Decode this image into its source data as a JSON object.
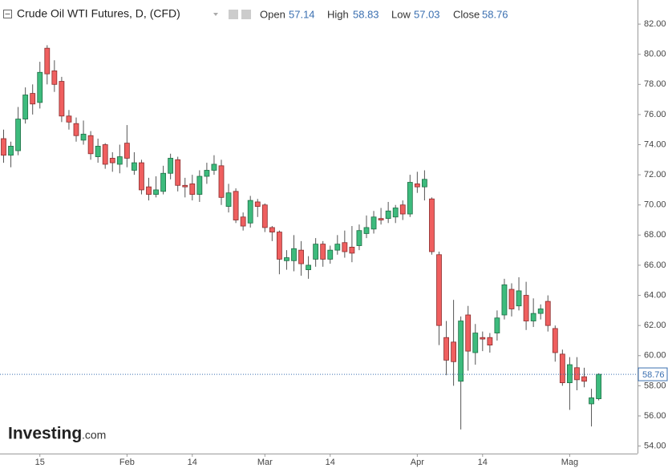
{
  "chart_data": {
    "type": "candlestick",
    "title": "Crude Oil WTI Futures, D, (CFD)",
    "ohlc_labels": [
      "Open",
      "High",
      "Low",
      "Close"
    ],
    "watermark": [
      "Investing",
      ".com"
    ],
    "categories": [
      null,
      null,
      null,
      null,
      null,
      "15",
      null,
      null,
      null,
      null,
      null,
      null,
      null,
      null,
      null,
      null,
      null,
      "Feb",
      null,
      null,
      null,
      null,
      null,
      null,
      null,
      null,
      "14",
      null,
      null,
      null,
      null,
      null,
      null,
      null,
      null,
      null,
      "Mar",
      null,
      null,
      null,
      null,
      null,
      null,
      null,
      null,
      "14",
      null,
      null,
      null,
      null,
      null,
      null,
      null,
      null,
      null,
      null,
      null,
      "Apr",
      null,
      null,
      null,
      null,
      null,
      null,
      null,
      null,
      "14",
      null,
      null,
      null,
      null,
      null,
      null,
      null,
      null,
      null,
      null,
      null,
      "Mag",
      null,
      null,
      null,
      null
    ],
    "open": [
      74.4,
      73.3,
      73.6,
      75.7,
      77.4,
      76.8,
      80.4,
      78.9,
      78.2,
      75.9,
      75.4,
      74.3,
      74.6,
      73.2,
      74.0,
      73.1,
      72.7,
      74.1,
      72.3,
      72.8,
      71.2,
      70.7,
      70.9,
      72.1,
      73.0,
      71.3,
      71.4,
      70.7,
      71.9,
      72.3,
      72.6,
      69.9,
      70.9,
      69.2,
      68.8,
      70.2,
      70.0,
      68.5,
      68.2,
      66.3,
      66.3,
      67.0,
      65.7,
      66.4,
      67.4,
      66.4,
      67.0,
      67.5,
      67.2,
      67.3,
      68.1,
      68.4,
      69.1,
      69.1,
      69.2,
      70.0,
      69.4,
      71.4,
      71.2,
      70.4,
      66.7,
      61.2,
      60.9,
      58.3,
      62.7,
      60.2,
      61.2,
      61.2,
      61.5,
      62.7,
      64.4,
      63.3,
      64.0,
      62.3,
      62.8,
      63.6,
      61.8,
      60.1,
      58.2,
      59.2,
      58.6,
      56.8,
      57.14
    ],
    "high": [
      75.0,
      74.2,
      76.5,
      77.8,
      78.0,
      79.5,
      80.6,
      79.6,
      78.5,
      76.3,
      75.8,
      75.6,
      74.9,
      74.4,
      74.1,
      73.5,
      74.0,
      75.3,
      73.5,
      73.0,
      71.8,
      71.9,
      72.6,
      73.4,
      73.2,
      71.8,
      72.0,
      72.3,
      72.8,
      73.3,
      73.0,
      71.4,
      71.1,
      69.5,
      70.6,
      70.4,
      70.1,
      68.6,
      68.3,
      67.0,
      68.0,
      67.6,
      66.6,
      67.8,
      67.6,
      67.3,
      68.0,
      68.3,
      68.6,
      68.7,
      69.3,
      69.6,
      69.8,
      70.2,
      70.0,
      70.3,
      72.0,
      72.2,
      72.3,
      70.5,
      66.9,
      62.3,
      63.7,
      62.6,
      63.3,
      62.1,
      61.6,
      61.5,
      63.0,
      65.1,
      64.8,
      65.2,
      64.9,
      63.8,
      63.4,
      64.0,
      62.0,
      60.4,
      59.9,
      59.9,
      59.2,
      57.8,
      58.83
    ],
    "low": [
      72.8,
      72.5,
      73.3,
      75.4,
      76.0,
      76.4,
      78.0,
      77.5,
      75.5,
      75.0,
      74.2,
      74.0,
      73.0,
      72.8,
      72.4,
      72.2,
      72.1,
      72.5,
      72.0,
      70.7,
      70.3,
      70.5,
      70.7,
      71.7,
      70.9,
      70.5,
      70.3,
      70.2,
      71.4,
      72.0,
      70.0,
      69.5,
      68.8,
      68.3,
      68.5,
      69.2,
      68.2,
      67.6,
      65.4,
      65.7,
      65.6,
      65.3,
      65.1,
      65.9,
      65.9,
      66.1,
      66.7,
      66.5,
      66.2,
      67.0,
      67.8,
      68.1,
      68.7,
      68.8,
      68.8,
      69.0,
      69.2,
      70.8,
      70.3,
      66.7,
      60.7,
      58.7,
      58.0,
      55.1,
      59.0,
      59.4,
      60.3,
      60.2,
      61.0,
      62.4,
      62.6,
      63.0,
      61.7,
      61.9,
      62.4,
      61.6,
      59.6,
      58.0,
      56.4,
      57.7,
      57.9,
      55.3,
      57.03
    ],
    "close": [
      73.3,
      73.9,
      75.7,
      77.3,
      76.7,
      78.8,
      78.7,
      78.0,
      75.9,
      75.5,
      74.6,
      74.7,
      73.4,
      73.9,
      72.7,
      72.8,
      73.2,
      73.1,
      72.8,
      71.0,
      70.7,
      71.0,
      72.1,
      73.1,
      71.3,
      71.2,
      70.7,
      71.9,
      72.3,
      72.7,
      70.5,
      70.8,
      69.0,
      68.6,
      70.3,
      69.9,
      68.5,
      68.2,
      66.4,
      66.5,
      67.1,
      66.1,
      66.0,
      67.4,
      66.4,
      67.0,
      67.4,
      66.9,
      66.8,
      68.3,
      68.5,
      69.2,
      69.0,
      69.6,
      69.8,
      69.4,
      71.5,
      71.2,
      71.7,
      66.9,
      62.0,
      59.7,
      59.6,
      62.3,
      60.3,
      61.5,
      61.1,
      60.7,
      62.5,
      64.7,
      63.1,
      64.3,
      62.3,
      62.8,
      63.1,
      62.0,
      60.2,
      58.2,
      59.4,
      58.4,
      58.3,
      57.2,
      58.76
    ],
    "up_color": "#3dbb7d",
    "down_color": "#ef5f5f",
    "ylim": [
      53.5,
      83.6
    ],
    "yticks": [
      {
        "value": 54,
        "label": "54.00"
      },
      {
        "value": 56,
        "label": "56.00"
      },
      {
        "value": 58,
        "label": "58.00"
      },
      {
        "value": 60,
        "label": "60.00"
      },
      {
        "value": 62,
        "label": "62.00"
      },
      {
        "value": 64,
        "label": "64.00"
      },
      {
        "value": 66,
        "label": "66.00"
      },
      {
        "value": 68,
        "label": "68.00"
      },
      {
        "value": 70,
        "label": "70.00"
      },
      {
        "value": 72,
        "label": "72.00"
      },
      {
        "value": 74,
        "label": "74.00"
      },
      {
        "value": 76,
        "label": "76.00"
      },
      {
        "value": 78,
        "label": "78.00"
      },
      {
        "value": 80,
        "label": "80.00"
      },
      {
        "value": 82,
        "label": "82.00"
      }
    ]
  }
}
